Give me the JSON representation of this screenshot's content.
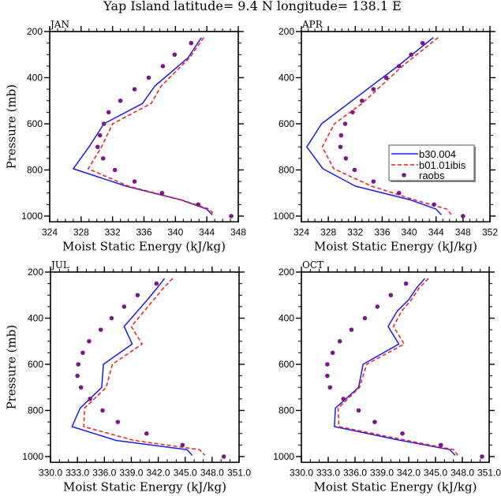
{
  "title": "Yap Island   latitude= 9.4 N longitude= 138.1 E",
  "legend": {
    "entries": [
      {
        "label": "b30.004",
        "style": "solid",
        "color": "#1a1aff"
      },
      {
        "label": "b01.01ibis",
        "style": "dashed",
        "color": "#ff1a1a"
      },
      {
        "label": "raobs",
        "style": "marker",
        "color": "#7a1a8a"
      }
    ],
    "panel": "APR",
    "placement": "center-right"
  },
  "chart_data": [
    {
      "type": "line",
      "panel_label": "JAN",
      "xlabel": "Moist Static Energy (kJ/kg)",
      "ylabel": "Pressure (mb)",
      "xlim": [
        324,
        348
      ],
      "ylim": [
        200,
        1025
      ],
      "y_inverted": true,
      "x_ticks": [
        324,
        328,
        332,
        336,
        340,
        344,
        348
      ],
      "x_tick_labels": [
        "324",
        "328",
        "332",
        "336",
        "340",
        "344",
        "348"
      ],
      "x_minor_step": 1,
      "y_ticks": [
        200,
        400,
        600,
        800,
        1000
      ],
      "y_tick_labels": [
        "200",
        "400",
        "600",
        "800",
        "1000"
      ],
      "y_minor_step": 50,
      "show_ylabel": true,
      "series": [
        {
          "name": "b30.004",
          "pressure": [
            226,
            314,
            436,
            512,
            600,
            700,
            795,
            870,
            930,
            970,
            995
          ],
          "values": [
            343.3,
            341.6,
            337.4,
            335.8,
            330.9,
            329.0,
            327.0,
            333.7,
            340.7,
            344.0,
            344.7
          ]
        },
        {
          "name": "b01.01ibis",
          "pressure": [
            226,
            314,
            436,
            512,
            600,
            700,
            795,
            870,
            930,
            970,
            995
          ],
          "values": [
            343.6,
            341.8,
            338.2,
            336.9,
            332.0,
            330.6,
            328.9,
            334.0,
            340.8,
            344.3,
            345.0
          ]
        },
        {
          "name": "raobs",
          "pressure": [
            250,
            300,
            350,
            400,
            450,
            500,
            550,
            600,
            650,
            700,
            750,
            800,
            850,
            900,
            950,
            1000
          ],
          "values": [
            342.0,
            339.9,
            338.4,
            336.6,
            334.8,
            333.0,
            331.5,
            330.9,
            330.4,
            330.1,
            330.8,
            332.3,
            334.8,
            338.3,
            342.9,
            347.1
          ]
        }
      ]
    },
    {
      "type": "line",
      "panel_label": "APR",
      "xlabel": "Moist Static Energy (kJ/kg)",
      "ylabel": "",
      "xlim": [
        324,
        352
      ],
      "ylim": [
        200,
        1025
      ],
      "y_inverted": true,
      "x_ticks": [
        324,
        328,
        332,
        336,
        340,
        344,
        348,
        352
      ],
      "x_tick_labels": [
        "324",
        "328",
        "332",
        "336",
        "340",
        "344",
        "348",
        "352"
      ],
      "x_minor_step": 1,
      "y_ticks": [
        200,
        400,
        600,
        800,
        1000
      ],
      "y_tick_labels": [
        "200",
        "400",
        "600",
        "800",
        "1000"
      ],
      "y_minor_step": 50,
      "show_ylabel": false,
      "series": [
        {
          "name": "b30.004",
          "pressure": [
            226,
            350,
            600,
            700,
            795,
            870,
            930,
            970,
            995
          ],
          "values": [
            343.6,
            338.3,
            327.0,
            324.8,
            327.2,
            332.0,
            340.2,
            344.0,
            344.8
          ]
        },
        {
          "name": "b01.01ibis",
          "pressure": [
            226,
            350,
            512,
            600,
            700,
            795,
            870,
            930,
            970,
            995
          ],
          "values": [
            344.3,
            339.0,
            333.0,
            328.9,
            327.1,
            328.8,
            334.4,
            340.8,
            345.6,
            346.3
          ]
        },
        {
          "name": "raobs",
          "pressure": [
            250,
            300,
            350,
            400,
            450,
            500,
            550,
            600,
            650,
            700,
            750,
            800,
            850,
            900,
            950,
            1000
          ],
          "values": [
            342.0,
            340.3,
            338.5,
            336.6,
            334.7,
            333.0,
            331.6,
            330.5,
            329.9,
            329.8,
            330.6,
            331.9,
            334.7,
            338.5,
            343.7,
            348.0
          ]
        }
      ]
    },
    {
      "type": "line",
      "panel_label": "JUL",
      "xlabel": "Moist Static Energy (kJ/kg)",
      "ylabel": "Pressure (mb)",
      "xlim": [
        330,
        351
      ],
      "ylim": [
        200,
        1025
      ],
      "y_inverted": true,
      "x_ticks": [
        330,
        333,
        336,
        339,
        342,
        345,
        348,
        351
      ],
      "x_tick_labels": [
        "330.0",
        "333.0",
        "336.0",
        "339.0",
        "342.0",
        "345.0",
        "348.0",
        "351.0"
      ],
      "x_minor_step": 1,
      "y_ticks": [
        200,
        400,
        600,
        800,
        1000
      ],
      "y_tick_labels": [
        "200",
        "400",
        "600",
        "800",
        "1000"
      ],
      "y_minor_step": 50,
      "show_ylabel": true,
      "series": [
        {
          "name": "b30.004",
          "pressure": [
            228,
            268,
            320,
            436,
            512,
            600,
            700,
            790,
            870,
            930,
            970,
            995
          ],
          "values": [
            342.7,
            341.9,
            340.8,
            338.2,
            339.1,
            335.9,
            335.7,
            333.3,
            332.4,
            337.3,
            345.2,
            345.8
          ]
        },
        {
          "name": "b01.01ibis",
          "pressure": [
            228,
            268,
            320,
            436,
            512,
            600,
            700,
            790,
            870,
            930,
            970,
            995
          ],
          "values": [
            343.6,
            342.6,
            341.5,
            339.0,
            340.2,
            336.9,
            336.2,
            333.8,
            333.7,
            339.3,
            346.6,
            347.2
          ]
        },
        {
          "name": "raobs",
          "pressure": [
            250,
            300,
            350,
            400,
            450,
            500,
            550,
            600,
            650,
            700,
            750,
            800,
            850,
            900,
            950,
            1000
          ],
          "values": [
            341.8,
            339.7,
            338.2,
            336.8,
            335.6,
            334.3,
            333.6,
            333.1,
            333.0,
            333.4,
            334.4,
            335.8,
            337.5,
            340.7,
            344.7,
            349.3
          ]
        }
      ]
    },
    {
      "type": "line",
      "panel_label": "OCT",
      "xlabel": "Moist Static Energy (kJ/kg)",
      "ylabel": "",
      "xlim": [
        330,
        351
      ],
      "ylim": [
        200,
        1025
      ],
      "y_inverted": true,
      "x_ticks": [
        330,
        333,
        336,
        339,
        342,
        345,
        348,
        351
      ],
      "x_tick_labels": [
        "330.0",
        "333.0",
        "336.0",
        "339.0",
        "342.0",
        "345.0",
        "348.0",
        "351.0"
      ],
      "x_minor_step": 1,
      "y_ticks": [
        200,
        400,
        600,
        800,
        1000
      ],
      "y_tick_labels": [
        "200",
        "400",
        "600",
        "800",
        "1000"
      ],
      "y_minor_step": 50,
      "show_ylabel": false,
      "series": [
        {
          "name": "b30.004",
          "pressure": [
            228,
            268,
            320,
            370,
            436,
            512,
            600,
            700,
            790,
            870,
            930,
            970,
            995
          ],
          "values": [
            343.8,
            342.9,
            342.0,
            340.7,
            339.7,
            340.9,
            336.9,
            336.4,
            333.8,
            333.7,
            341.1,
            346.6,
            347.2
          ]
        },
        {
          "name": "b01.01ibis",
          "pressure": [
            228,
            268,
            320,
            370,
            436,
            512,
            600,
            700,
            790,
            870,
            930,
            970,
            995
          ],
          "values": [
            344.2,
            343.2,
            342.3,
            341.2,
            340.3,
            341.5,
            337.3,
            336.5,
            334.1,
            334.2,
            341.8,
            347.0,
            347.5
          ]
        },
        {
          "name": "raobs",
          "pressure": [
            250,
            300,
            350,
            400,
            450,
            500,
            550,
            600,
            650,
            700,
            750,
            800,
            850,
            900,
            950,
            1000
          ],
          "values": [
            341.7,
            340.0,
            338.5,
            337.1,
            335.6,
            334.3,
            333.5,
            332.9,
            332.9,
            333.2,
            334.7,
            336.4,
            338.2,
            341.3,
            345.6,
            350.2
          ]
        }
      ]
    }
  ]
}
